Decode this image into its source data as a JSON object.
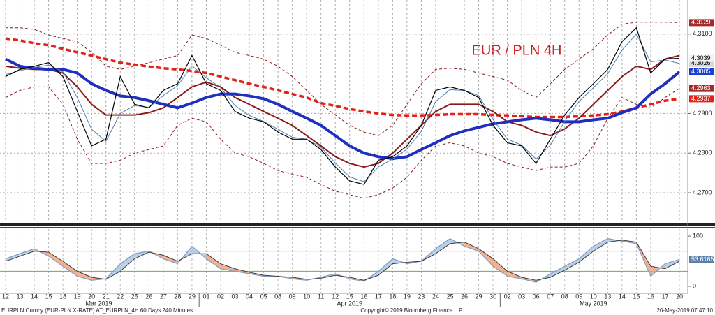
{
  "chart_data": [
    {
      "type": "line",
      "title": "EUR / PLN 4H",
      "ylim": [
        4.2626,
        4.3186
      ],
      "yticks": [
        {
          "value": 4.27,
          "label": "4.2700"
        },
        {
          "value": 4.28,
          "label": "4.2800"
        },
        {
          "value": 4.29,
          "label": "4.2900"
        },
        {
          "value": 4.31,
          "label": "4.3100"
        }
      ],
      "grid": true,
      "series": [
        {
          "color": "#8b1a1a",
          "width": 1,
          "dash": "4,3",
          "last_label": true,
          "label_bg": "#a52a2a",
          "label_fg": "#ffffff",
          "values": [
            4.3116,
            4.3116,
            4.3112,
            4.3098,
            4.3089,
            4.3081,
            4.3054,
            4.3019,
            4.3011,
            4.3019,
            4.3028,
            4.3037,
            4.3046,
            4.3098,
            4.3089,
            4.3072,
            4.3054,
            4.3046,
            4.3037,
            4.3019,
            4.2993,
            4.2958,
            4.2923,
            4.2896,
            4.287,
            4.2853,
            4.2844,
            4.287,
            4.2923,
            4.2975,
            4.3011,
            4.3014,
            4.3011,
            4.3002,
            4.2993,
            4.2984,
            4.2958,
            4.294,
            4.2975,
            4.3011,
            4.3037,
            4.3063,
            4.3098,
            4.3125,
            4.313,
            4.313,
            4.313,
            4.3129
          ]
        },
        {
          "color": "#8b1a1a",
          "width": 1,
          "dash": "4,3",
          "last_label": true,
          "label_bg": "#a52a2a",
          "label_fg": "#ffffff",
          "values": [
            4.294,
            4.2958,
            4.2967,
            4.2967,
            4.2923,
            4.2835,
            4.2774,
            4.2774,
            4.2782,
            4.28,
            4.2809,
            4.2818,
            4.287,
            4.2888,
            4.2879,
            4.2835,
            4.28,
            4.2791,
            4.2774,
            4.2756,
            4.2747,
            4.2739,
            4.2721,
            4.2704,
            4.2695,
            4.2686,
            4.2695,
            4.2712,
            4.2739,
            4.2782,
            4.2818,
            4.2826,
            4.2818,
            4.28,
            4.2791,
            4.2774,
            4.2765,
            4.2756,
            4.2765,
            4.2765,
            4.2774,
            4.2818,
            4.2888,
            4.294,
            4.2923,
            4.2914,
            4.294,
            4.2963
          ]
        },
        {
          "color": "#e32119",
          "width": 3.5,
          "dash": "7,4",
          "last_label": true,
          "label_bg": "#e32119",
          "label_fg": "#ffffff",
          "values": [
            4.3089,
            4.3084,
            4.3077,
            4.3072,
            4.3063,
            4.3054,
            4.3046,
            4.3037,
            4.3028,
            4.3023,
            4.3018,
            4.3014,
            4.3011,
            4.3007,
            4.3002,
            4.2993,
            4.2984,
            4.2975,
            4.2967,
            4.2958,
            4.2949,
            4.294,
            4.2926,
            4.2919,
            4.2911,
            4.2905,
            4.29,
            4.2896,
            4.2895,
            4.2895,
            4.2896,
            4.2898,
            4.2898,
            4.2898,
            4.2896,
            4.2895,
            4.2893,
            4.2891,
            4.2891,
            4.2891,
            4.2893,
            4.2895,
            4.2898,
            4.2905,
            4.2914,
            4.2923,
            4.2932,
            4.2937
          ]
        },
        {
          "color": "#8b1a1a",
          "width": 2,
          "last_label": false,
          "values": [
            4.3019,
            4.3014,
            4.3011,
            4.3011,
            4.3002,
            4.2967,
            4.2923,
            4.2896,
            4.2896,
            4.2896,
            4.2902,
            4.2914,
            4.294,
            4.2967,
            4.2979,
            4.2967,
            4.294,
            4.2923,
            4.2905,
            4.2888,
            4.287,
            4.2844,
            4.2818,
            4.2791,
            4.2774,
            4.2765,
            4.2774,
            4.28,
            4.2835,
            4.287,
            4.2905,
            4.2923,
            4.2923,
            4.2923,
            4.2905,
            4.2879,
            4.287,
            4.2853,
            4.2844,
            4.2861,
            4.2888,
            4.2923,
            4.2958,
            4.2993,
            4.3019,
            4.3011,
            4.3037,
            4.3046
          ]
        },
        {
          "color": "#1f2fbf",
          "width": 4,
          "last_label": true,
          "label_bg": "#1f3fd0",
          "label_fg": "#ffffff",
          "values": [
            4.3037,
            4.3019,
            4.3014,
            4.3011,
            4.3011,
            4.3002,
            4.2975,
            4.2958,
            4.2944,
            4.294,
            4.2932,
            4.2923,
            4.2914,
            4.2926,
            4.294,
            4.2949,
            4.2949,
            4.2944,
            4.2937,
            4.2923,
            4.2905,
            4.2888,
            4.287,
            4.2844,
            4.2818,
            4.28,
            4.2791,
            4.2786,
            4.2791,
            4.2809,
            4.2826,
            4.2844,
            4.2856,
            4.2865,
            4.2874,
            4.2879,
            4.2884,
            4.2888,
            4.2884,
            4.2879,
            4.2879,
            4.2884,
            4.2888,
            4.2902,
            4.2914,
            4.2949,
            4.2975,
            4.3005
          ]
        },
        {
          "color": "#4a7fb0",
          "width": 1,
          "last_label": true,
          "label_bg": "#d9d9d9",
          "label_fg": "#000000",
          "values": [
            4.2998,
            4.3008,
            4.3016,
            4.3022,
            4.3005,
            4.294,
            4.286,
            4.283,
            4.29,
            4.292,
            4.2915,
            4.2945,
            4.297,
            4.302,
            4.299,
            4.2965,
            4.292,
            4.2895,
            4.288,
            4.286,
            4.284,
            4.2835,
            4.2815,
            4.2775,
            4.274,
            4.2728,
            4.2765,
            4.2785,
            4.281,
            4.2855,
            4.293,
            4.296,
            4.2958,
            4.2945,
            4.2885,
            4.2835,
            4.282,
            4.2785,
            4.282,
            4.288,
            4.293,
            4.2965,
            4.3,
            4.306,
            4.31,
            4.303,
            4.3035,
            4.3026
          ]
        },
        {
          "color": "#000000",
          "width": 1.2,
          "last_label": true,
          "label_bg": "#f2f2f2",
          "label_fg": "#000000",
          "values": [
            4.2993,
            4.3011,
            4.3019,
            4.3028,
            4.2993,
            4.2905,
            4.2818,
            4.2835,
            4.2993,
            4.2923,
            4.2914,
            4.2958,
            4.2975,
            4.3046,
            4.2975,
            4.2958,
            4.2905,
            4.2888,
            4.2879,
            4.2853,
            4.2835,
            4.2835,
            4.2809,
            4.2765,
            4.273,
            4.2721,
            4.2782,
            4.2791,
            4.2818,
            4.287,
            4.2958,
            4.2967,
            4.2958,
            4.294,
            4.287,
            4.2826,
            4.2818,
            4.2774,
            4.2835,
            4.2896,
            4.294,
            4.2975,
            4.3011,
            4.3081,
            4.3116,
            4.3002,
            4.3037,
            4.3039
          ]
        }
      ]
    },
    {
      "type": "line",
      "categories": [
        "12",
        "13",
        "14",
        "15",
        "18",
        "19",
        "20",
        "21",
        "22",
        "25",
        "26",
        "27",
        "28",
        "29",
        "01",
        "02",
        "03",
        "04",
        "05",
        "08",
        "09",
        "10",
        "11",
        "12",
        "15",
        "16",
        "17",
        "18",
        "19",
        "23",
        "24",
        "25",
        "26",
        "29",
        "30",
        "02",
        "03",
        "06",
        "07",
        "08",
        "09",
        "10",
        "13",
        "14",
        "15",
        "16",
        "17",
        "20"
      ],
      "periods": [
        {
          "label": "Mar 2019",
          "start": 0,
          "end": 13
        },
        {
          "label": "Apr 2019",
          "start": 14,
          "end": 34
        },
        {
          "label": "May 2019",
          "start": 35,
          "end": 47
        }
      ],
      "ylim": [
        -14,
        114
      ],
      "yticks": [
        0,
        100
      ],
      "levels": [
        {
          "value": 70,
          "color": "#c0504d"
        },
        {
          "value": 30,
          "color": "#70ad47"
        }
      ],
      "fill_between": true,
      "series": [
        {
          "color": "#7f9cc0",
          "width": 1.2,
          "last_label": true,
          "label_bg": "#5b7fa8",
          "label_fg": "#ffffff",
          "values": [
            55,
            65,
            75,
            60,
            40,
            20,
            12,
            15,
            45,
            65,
            70,
            55,
            45,
            80,
            55,
            35,
            30,
            25,
            20,
            20,
            15,
            12,
            18,
            25,
            15,
            10,
            30,
            55,
            45,
            50,
            75,
            95,
            80,
            70,
            40,
            20,
            15,
            8,
            25,
            40,
            55,
            80,
            95,
            90,
            85,
            20,
            45,
            53.6165
          ]
        },
        {
          "color": "#3a3a3a",
          "width": 1,
          "last_label": false,
          "values": [
            50,
            60,
            70,
            68,
            50,
            30,
            18,
            14,
            30,
            55,
            68,
            62,
            50,
            65,
            65,
            45,
            35,
            28,
            22,
            20,
            18,
            14,
            16,
            22,
            18,
            12,
            22,
            45,
            48,
            50,
            65,
            85,
            88,
            75,
            55,
            30,
            18,
            12,
            18,
            32,
            48,
            70,
            88,
            92,
            88,
            40,
            35,
            50
          ]
        }
      ]
    }
  ],
  "footer": {
    "left": "EURPLN Curncy (EUR-PLN X-RATE) AT_EURPLN_4H 60 Days 240 Minutes",
    "center": "Copyright© 2019 Bloomberg Finance L.P.",
    "right": "20-May-2019 07:47:10"
  }
}
